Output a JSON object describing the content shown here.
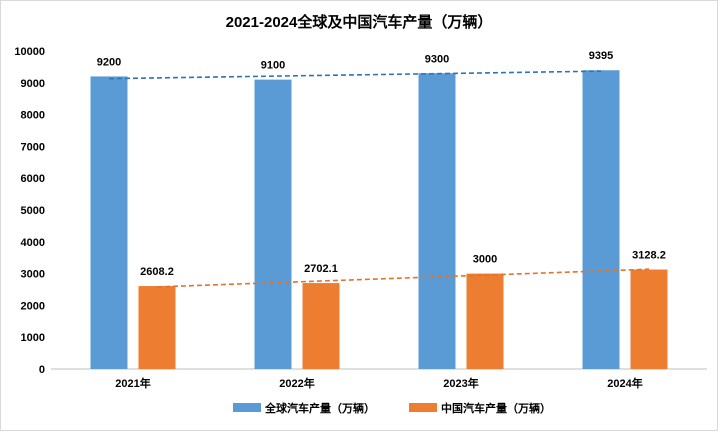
{
  "chart_data": {
    "type": "bar",
    "title": "2021-2024全球及中国汽车产量（万辆）",
    "categories": [
      "2021年",
      "2022年",
      "2023年",
      "2024年"
    ],
    "series": [
      {
        "name": "全球汽车产量（万辆）",
        "values": [
          9200,
          9100,
          9300,
          9395
        ],
        "labels": [
          "9200",
          "9100",
          "9300",
          "9395"
        ],
        "color": "#5b9bd5"
      },
      {
        "name": "中国汽车产量（万辆）",
        "values": [
          2608.2,
          2702.1,
          3000,
          3128.2
        ],
        "labels": [
          "2608.2",
          "2702.1",
          "3000",
          "3128.2"
        ],
        "color": "#ed7d31"
      }
    ],
    "trendlines": true,
    "ylim": [
      0,
      10000
    ],
    "ytick_step": 1000,
    "yticks": [
      "0",
      "1000",
      "2000",
      "3000",
      "4000",
      "5000",
      "6000",
      "7000",
      "8000",
      "9000",
      "10000"
    ],
    "grid": false,
    "legend_position": "bottom"
  }
}
